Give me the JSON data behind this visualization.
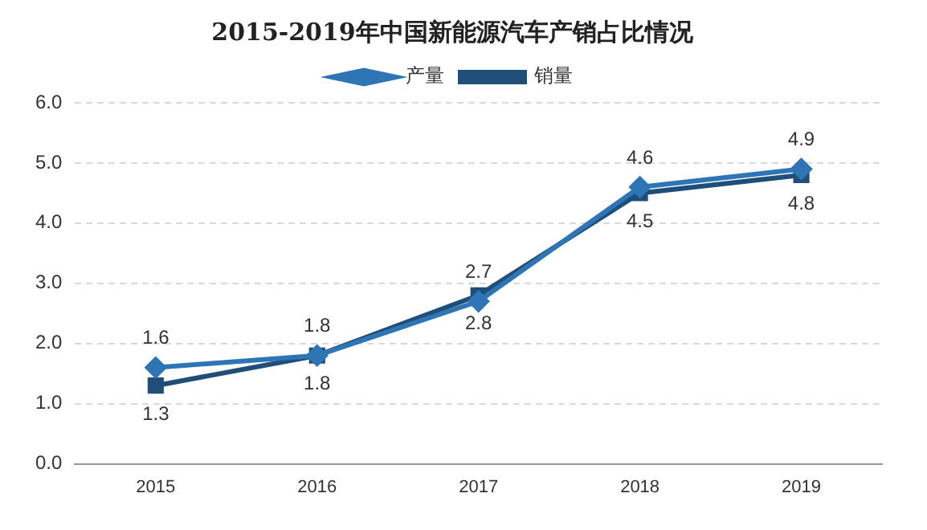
{
  "chart_data": {
    "type": "line",
    "title": "2015-2019年中国新能源汽车产销占比情况",
    "categories": [
      "2015",
      "2016",
      "2017",
      "2018",
      "2019"
    ],
    "series": [
      {
        "name": "产量",
        "color": "#2e75b6",
        "marker": "diamond",
        "values": [
          1.6,
          1.8,
          2.7,
          4.6,
          4.9
        ]
      },
      {
        "name": "销量",
        "color": "#1f4e79",
        "marker": "square",
        "values": [
          1.3,
          1.8,
          2.8,
          4.5,
          4.8
        ]
      }
    ],
    "ylim": [
      0,
      6
    ],
    "yticks": [
      {
        "value": 0,
        "label": "0.0"
      },
      {
        "value": 1,
        "label": "1.0"
      },
      {
        "value": 2,
        "label": "2.0"
      },
      {
        "value": 3,
        "label": "3.0"
      },
      {
        "value": 4,
        "label": "4.0"
      },
      {
        "value": 5,
        "label": "5.0"
      },
      {
        "value": 6,
        "label": "6.0"
      }
    ],
    "grid": "y",
    "legend": "top",
    "line_style": "solid",
    "data_labels": true
  }
}
